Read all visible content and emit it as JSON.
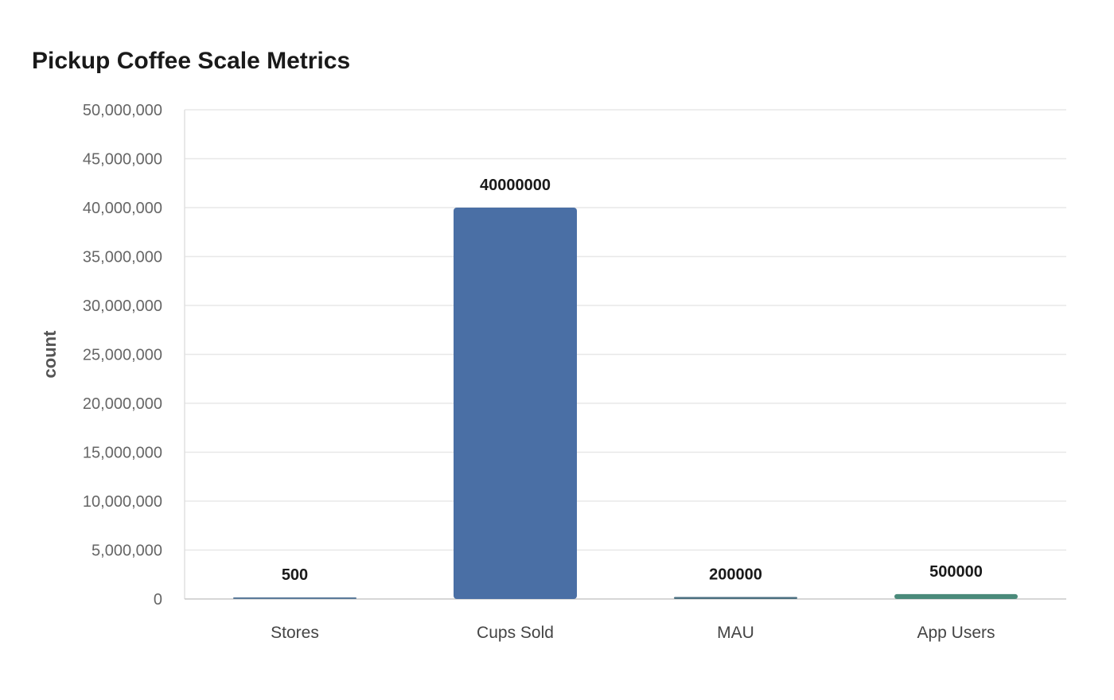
{
  "chart_data": {
    "type": "bar",
    "title": "Pickup Coffee Scale Metrics",
    "xlabel": "",
    "ylabel": "count",
    "categories": [
      "Stores",
      "Cups Sold",
      "MAU",
      "App Users"
    ],
    "values": [
      500,
      40000000,
      200000,
      500000
    ],
    "value_labels": [
      "500",
      "40000000",
      "200000",
      "500000"
    ],
    "colors": [
      "#5a7a9a",
      "#4a6fa5",
      "#4a6f80",
      "#4a8a7a"
    ],
    "ylim": [
      0,
      50000000
    ],
    "yticks": [
      0,
      5000000,
      10000000,
      15000000,
      20000000,
      25000000,
      30000000,
      35000000,
      40000000,
      45000000,
      50000000
    ],
    "ytick_labels": [
      "0",
      "5,000,000",
      "10,000,000",
      "15,000,000",
      "20,000,000",
      "25,000,000",
      "30,000,000",
      "35,000,000",
      "40,000,000",
      "45,000,000",
      "50,000,000"
    ],
    "grid": true,
    "legend": "none"
  }
}
